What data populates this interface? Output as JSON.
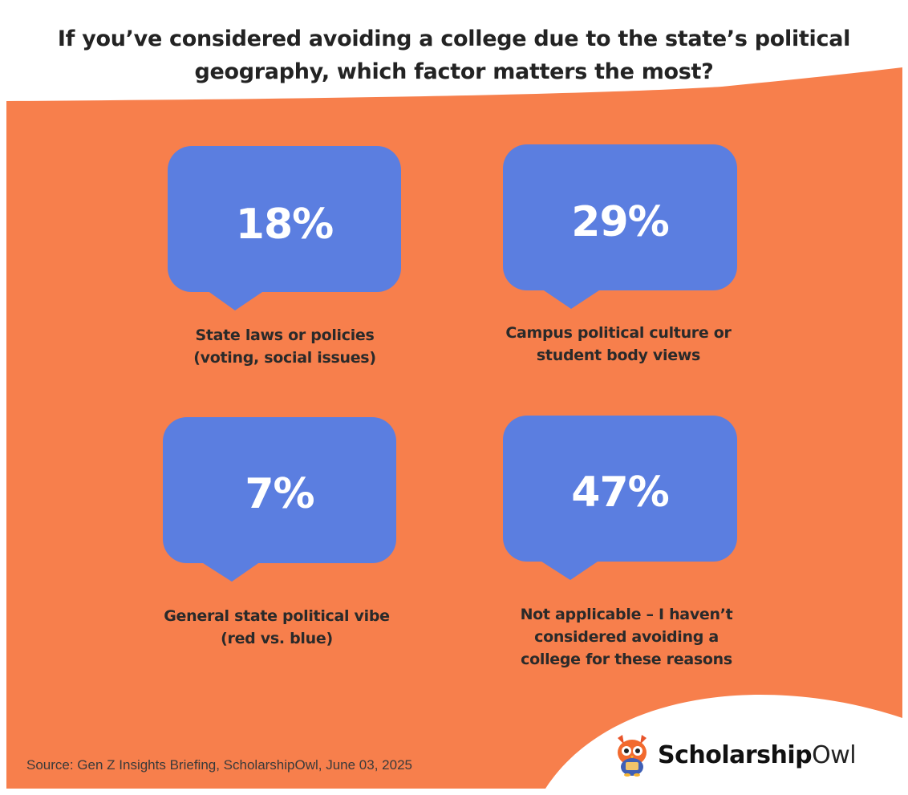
{
  "title_lines": [
    "If you’ve considered avoiding a college due to the state’s political",
    "geography, which factor matters the most?"
  ],
  "colors": {
    "background_orange": "#f77f4c",
    "bubble_blue": "#5b7ee0",
    "title": "#232323"
  },
  "chart_data": {
    "type": "table",
    "title": "If you’ve considered avoiding a college due to the state’s political geography, which factor matters the most?",
    "categories": [
      "State laws or policies (voting, social issues)",
      "Campus political culture or student body views",
      "General state political vibe (red vs. blue)",
      "Not applicable – I haven’t considered avoiding a college for these reasons"
    ],
    "values": [
      18,
      29,
      7,
      47
    ],
    "unit": "%"
  },
  "cards": [
    {
      "value_text": "18%",
      "label_lines": [
        "State laws or policies",
        "(voting, social issues)"
      ]
    },
    {
      "value_text": "29%",
      "label_lines": [
        "Campus political culture or",
        "student body views"
      ]
    },
    {
      "value_text": "7%",
      "label_lines": [
        "General state political vibe",
        "(red vs. blue)"
      ]
    },
    {
      "value_text": "47%",
      "label_lines": [
        "Not applicable – I haven’t",
        "considered avoiding a",
        "college for these reasons"
      ]
    }
  ],
  "source": "Source: Gen Z Insights Briefing, ScholarshipOwl, June 03, 2025",
  "logo": {
    "bold": "Scholarship",
    "light": "Owl",
    "icon": "owl-mascot-icon"
  }
}
